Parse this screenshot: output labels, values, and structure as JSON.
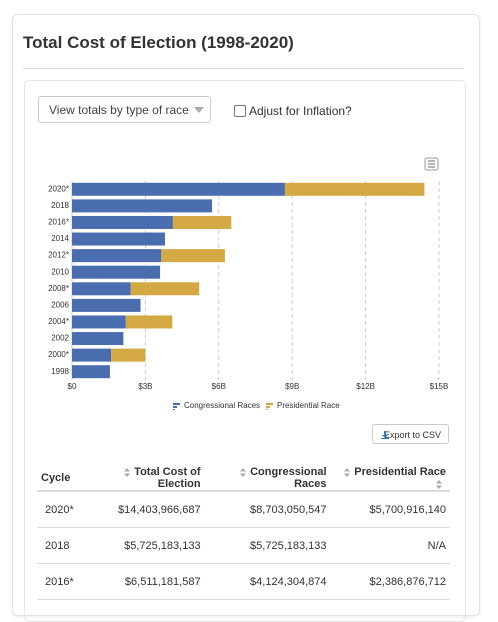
{
  "header": {
    "title": "Total Cost of Election (1998-2020)"
  },
  "controls": {
    "dropdown": "View totals by type of race",
    "checkbox": "Adjust for Inflation?",
    "export": "Export to CSV"
  },
  "chart_data": {
    "type": "bar",
    "orientation": "horizontal",
    "stacked": true,
    "categories": [
      "2020*",
      "2018",
      "2016*",
      "2014",
      "2012*",
      "2010",
      "2008*",
      "2006",
      "2004*",
      "2002",
      "2000*",
      "1998"
    ],
    "series": [
      {
        "name": "Congressional Races",
        "color": "#4a6db0",
        "values": [
          8703050547,
          5725183133,
          4124304874,
          3800000000,
          3650000000,
          3600000000,
          2400000000,
          2800000000,
          2200000000,
          2100000000,
          1600000000,
          1550000000
        ]
      },
      {
        "name": "Presidential Race",
        "color": "#d4a843",
        "values": [
          5700916140,
          null,
          2386876712,
          null,
          2600000000,
          null,
          2800000000,
          null,
          1900000000,
          null,
          1400000000,
          null
        ]
      }
    ],
    "xlim": [
      0,
      15000000000
    ],
    "xticks": [
      {
        "value": 0,
        "label": "$0"
      },
      {
        "value": 3000000000,
        "label": "$3B"
      },
      {
        "value": 6000000000,
        "label": "$6B"
      },
      {
        "value": 9000000000,
        "label": "$9B"
      },
      {
        "value": 12000000000,
        "label": "$12B"
      },
      {
        "value": 15000000000,
        "label": "$15B"
      }
    ],
    "grid": true
  },
  "table": {
    "columns": [
      "Cycle",
      "Total Cost of Election",
      "Congressional Races",
      "Presidential Race"
    ],
    "rows": [
      [
        "2020*",
        "$14,403,966,687",
        "$8,703,050,547",
        "$5,700,916,140"
      ],
      [
        "2018",
        "$5,725,183,133",
        "$5,725,183,133",
        "N/A"
      ],
      [
        "2016*",
        "$6,511,181,587",
        "$4,124,304,874",
        "$2,386,876,712"
      ]
    ]
  }
}
